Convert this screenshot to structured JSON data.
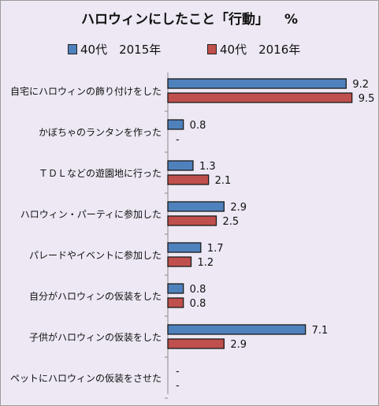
{
  "title": "ハロウィンにしたこと「行動」",
  "unit": "%",
  "chart_data": {
    "type": "bar",
    "orientation": "horizontal",
    "categories": [
      "自宅にハロウィンの飾り付けをした",
      "かぼちゃのランタンを作った",
      "ＴＤＬなどの遊園地に行った",
      "ハロウィン・パーティに参加した",
      "パレードやイベントに参加した",
      "自分がハロウィンの仮装をした",
      "子供がハロウィンの仮装をした",
      "ペットにハロウィンの仮装をさせた"
    ],
    "series": [
      {
        "name": "40代　2015年",
        "color": "#4f81bd",
        "values": [
          9.2,
          0.8,
          1.3,
          2.9,
          1.7,
          0.8,
          7.1,
          null
        ],
        "labels": [
          "9.2",
          "0.8",
          "1.3",
          "2.9",
          "1.7",
          "0.8",
          "7.1",
          "-"
        ]
      },
      {
        "name": "40代　2016年",
        "color": "#c0504d",
        "values": [
          9.5,
          null,
          2.1,
          2.5,
          1.2,
          0.8,
          2.9,
          null
        ],
        "labels": [
          "9.5",
          "-",
          "2.1",
          "2.5",
          "1.2",
          "0.8",
          "2.9",
          "-"
        ]
      }
    ],
    "xlim": [
      0,
      10
    ],
    "legend_position": "top",
    "grid": false
  }
}
